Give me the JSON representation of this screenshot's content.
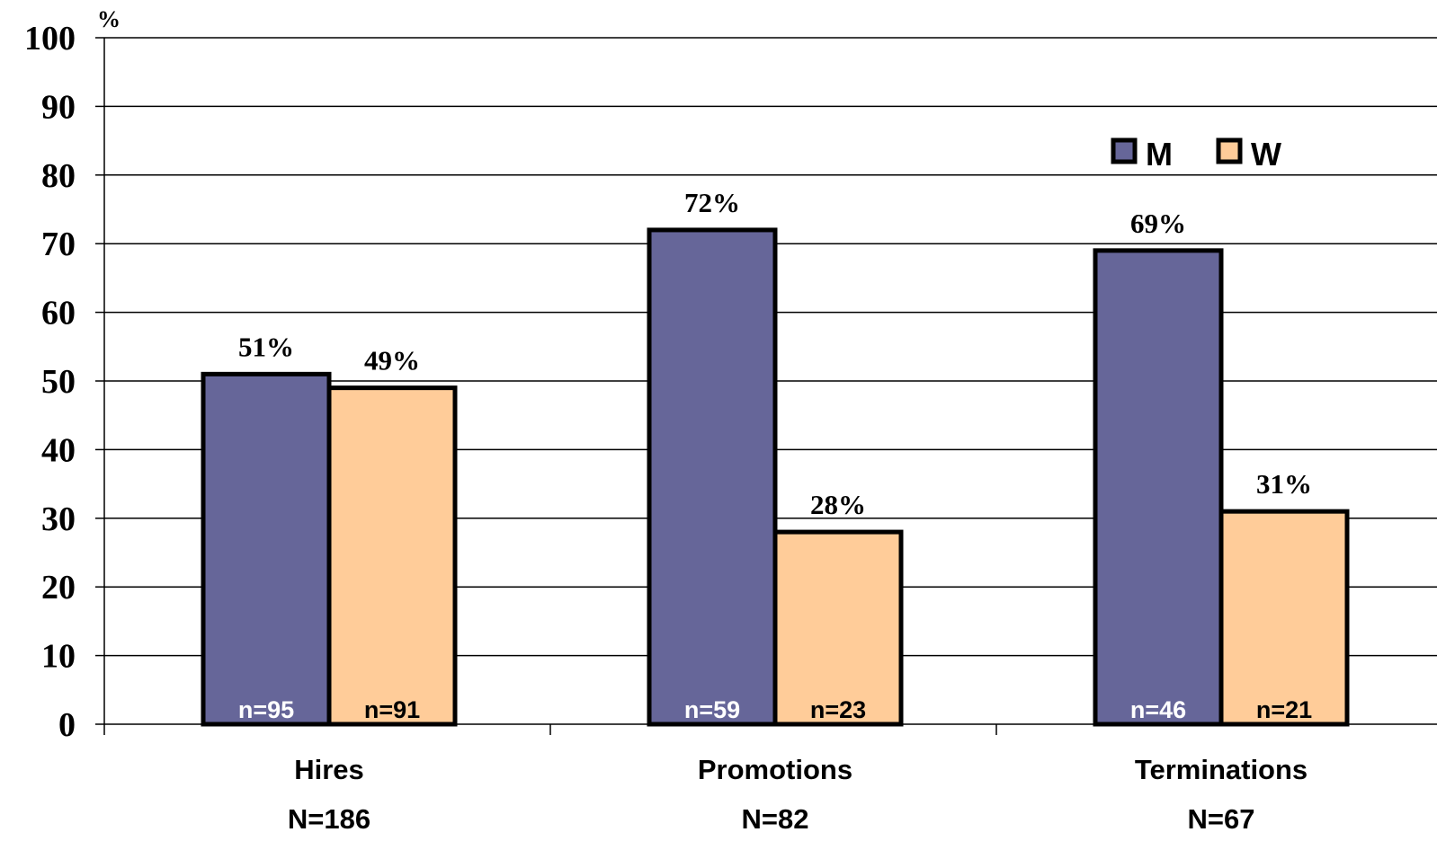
{
  "chart_data": {
    "type": "bar",
    "ylabel": "%",
    "ylim": [
      0,
      100
    ],
    "yticks": [
      "0",
      "10",
      "20",
      "30",
      "40",
      "50",
      "60",
      "70",
      "80",
      "90",
      "100"
    ],
    "grid": true,
    "legend_position": "top-right",
    "categories": [
      "Hires",
      "Promotions",
      "Terminations"
    ],
    "category_totals": [
      "N=186",
      "N=82",
      "N=67"
    ],
    "series": [
      {
        "name": "M",
        "color": "#666699",
        "values": [
          51,
          72,
          69
        ],
        "value_labels": [
          "51%",
          "72%",
          "69%"
        ],
        "count_labels": [
          "n=95",
          "n=59",
          "n=46"
        ],
        "count_label_color": "#ffffff"
      },
      {
        "name": "W",
        "color": "#ffcc99",
        "values": [
          49,
          28,
          31
        ],
        "value_labels": [
          "49%",
          "28%",
          "31%"
        ],
        "count_labels": [
          "n=91",
          "n=23",
          "n=21"
        ],
        "count_label_color": "#000000"
      }
    ]
  }
}
